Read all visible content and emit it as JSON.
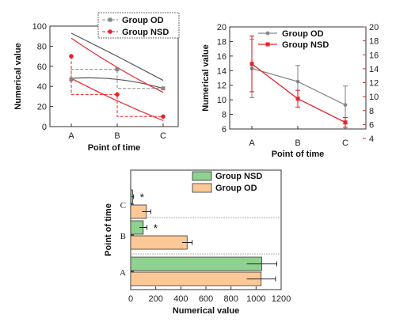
{
  "chart_data": [
    {
      "type": "line",
      "x": [
        "A",
        "B",
        "C"
      ],
      "xlabel": "Point of time",
      "ylabel": "Numerical value",
      "ylim": [
        0,
        100
      ],
      "yticks": [
        0,
        20,
        40,
        60,
        80,
        100
      ],
      "legend_position": "top-left",
      "series": [
        {
          "name": "Group OD",
          "color": "#888888",
          "values": [
            47,
            57,
            38
          ],
          "upper": [
            93,
            70,
            46
          ],
          "lower": [
            48,
            47,
            38
          ],
          "style": "dashed with square markers; shaded band edges in dark gray"
        },
        {
          "name": "Group NSD",
          "color": "#e8242a",
          "values": [
            70,
            32,
            10
          ],
          "upper": [
            88,
            52,
            34
          ],
          "lower": [
            48,
            29,
            6
          ],
          "style": "dashed with circle markers; shaded band edges in red"
        }
      ]
    },
    {
      "type": "line",
      "x": [
        "A",
        "B",
        "C"
      ],
      "xlabel": "Point of time",
      "ylabel": "Numerical value",
      "ylim": [
        6,
        20
      ],
      "yticks": [
        6,
        8,
        10,
        12,
        14,
        16,
        18,
        20
      ],
      "ylim_right": [
        4,
        20
      ],
      "yticks_right": [
        4,
        6,
        8,
        10,
        12,
        14,
        16,
        18,
        20
      ],
      "legend_position": "top",
      "series": [
        {
          "name": "Group OD",
          "color": "#888888",
          "axis": "left",
          "values": [
            14.3,
            12.5,
            9.3
          ],
          "error": [
            4.0,
            2.2,
            2.6
          ]
        },
        {
          "name": "Group NSD",
          "color": "#e8242a",
          "axis": "right",
          "values": [
            14.7,
            9.7,
            6.3
          ],
          "error": [
            4.0,
            1.2,
            0.7
          ]
        }
      ]
    },
    {
      "type": "bar",
      "orientation": "horizontal",
      "categories": [
        "A",
        "B",
        "C"
      ],
      "xlabel": "Numerical value",
      "ylabel": "Point of time",
      "xlim": [
        0,
        1200
      ],
      "xticks": [
        0,
        200,
        400,
        600,
        800,
        1000,
        1200
      ],
      "legend_position": "top-right",
      "annotations": [
        {
          "category": "B",
          "text": "*"
        },
        {
          "category": "C",
          "text": "*"
        }
      ],
      "series": [
        {
          "name": "Group NSD",
          "color": "#8fd18f",
          "values": [
            1045,
            100,
            15
          ],
          "error": [
            120,
            30,
            8
          ]
        },
        {
          "name": "Group OD",
          "color": "#fcc996",
          "values": [
            1040,
            450,
            125
          ],
          "error": [
            115,
            40,
            35
          ]
        }
      ]
    }
  ]
}
